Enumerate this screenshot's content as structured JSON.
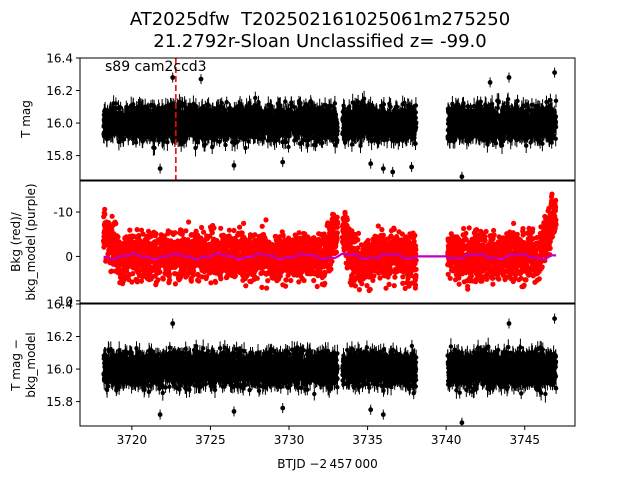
{
  "title_line1": "AT2025dfw  T202502161025061m275250",
  "title_line2": "21.2792r-Sloan Unclassified z= -99.0",
  "colors": {
    "flux": "#000000",
    "bkg": "#ff0000",
    "bkg_model": "#bf00bf",
    "event": "#ff0000"
  },
  "chart_data": [
    {
      "type": "scatter",
      "panel": "top",
      "ylabel": "T mag",
      "annotation": "s89 cam2ccd3",
      "ylim": [
        16.4,
        15.65
      ],
      "yticks": [
        15.8,
        16.0,
        16.2,
        16.4
      ],
      "xlim": [
        3716.7,
        3748.2
      ],
      "event_marker_x": 3722.8,
      "series": [
        {
          "segments": [
            [
              3718.2,
              3733.1
            ],
            [
              3733.4,
              3738.1
            ],
            [
              3740.1,
              3747.0
            ]
          ],
          "center": 16.0,
          "spread": 0.13
        }
      ],
      "outliers": [
        [
          3721.8,
          15.72
        ],
        [
          3726.5,
          15.74
        ],
        [
          3729.6,
          15.76
        ],
        [
          3735.2,
          15.75
        ],
        [
          3736.0,
          15.72
        ],
        [
          3736.6,
          15.7
        ],
        [
          3737.8,
          15.73
        ],
        [
          3741.0,
          15.67
        ],
        [
          3746.9,
          16.31
        ],
        [
          3722.6,
          16.28
        ],
        [
          3724.4,
          16.27
        ],
        [
          3744.0,
          16.28
        ],
        [
          3742.8,
          16.25
        ]
      ]
    },
    {
      "type": "scatter",
      "panel": "middle",
      "ylabel": "Bkg (red)/\nbkg_model (purple)",
      "ylim": [
        -17.0,
        10.5
      ],
      "yticks": [
        10,
        0,
        -10
      ],
      "xlim": [
        3716.7,
        3748.2
      ],
      "series": [
        {
          "name": "Bkg",
          "segments": [
            [
              3718.2,
              3733.1
            ],
            [
              3733.4,
              3738.1
            ],
            [
              3740.1,
              3747.0
            ]
          ],
          "center": 0,
          "spread": 4
        },
        {
          "name": "bkg_model",
          "segments": [
            [
              3718.2,
              3747.0
            ]
          ],
          "center": 0.5
        }
      ]
    },
    {
      "type": "scatter",
      "panel": "bottom",
      "ylabel": "T mag −\nbkg_model",
      "ylim": [
        16.4,
        15.65
      ],
      "yticks": [
        15.8,
        16.0,
        16.2,
        16.4
      ],
      "xlim": [
        3716.7,
        3748.2
      ],
      "xticks": [
        3720,
        3725,
        3730,
        3735,
        3740,
        3745
      ],
      "xlabel": "BTJD −2 457 000",
      "series": [
        {
          "segments": [
            [
              3718.2,
              3733.1
            ],
            [
              3733.4,
              3738.1
            ],
            [
              3740.1,
              3747.0
            ]
          ],
          "center": 16.0,
          "spread": 0.13
        }
      ],
      "outliers": [
        [
          3721.8,
          15.72
        ],
        [
          3726.5,
          15.74
        ],
        [
          3729.6,
          15.76
        ],
        [
          3735.2,
          15.75
        ],
        [
          3736.0,
          15.72
        ],
        [
          3741.0,
          15.67
        ],
        [
          3746.9,
          16.31
        ],
        [
          3722.6,
          16.28
        ],
        [
          3744.0,
          16.28
        ]
      ]
    }
  ]
}
